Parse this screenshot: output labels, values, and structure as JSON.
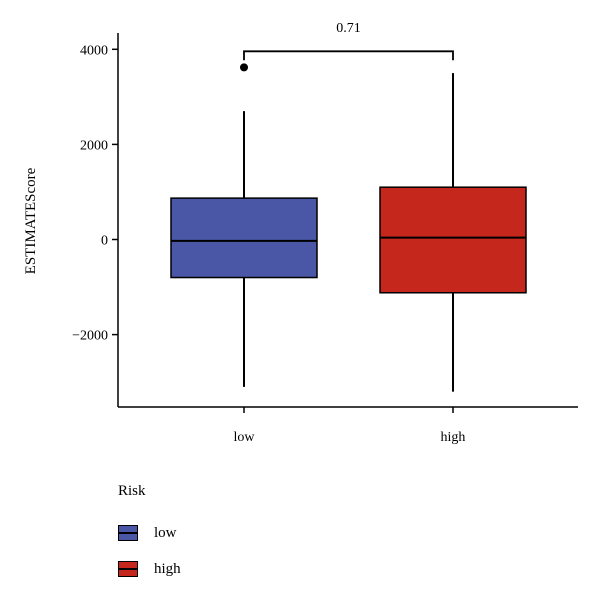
{
  "chart_data": {
    "type": "boxplot",
    "title": "",
    "xlabel": "",
    "ylabel": "ESTIMATEScore",
    "ylim": [
      -3550,
      4400
    ],
    "yticks": [
      4000,
      2000,
      0,
      -2000
    ],
    "ytick_labels": [
      "4000",
      "2000",
      "0",
      "−2000"
    ],
    "categories": [
      "low",
      "high"
    ],
    "boxes": [
      {
        "category": "low",
        "min": -3100,
        "q1": -800,
        "median": -30,
        "q3": 870,
        "max": 2700,
        "outliers": [
          3620
        ],
        "color": "#4a56a6"
      },
      {
        "category": "high",
        "min": -3200,
        "q1": -1120,
        "median": 40,
        "q3": 1100,
        "max": 3500,
        "outliers": [],
        "color": "#c6271c"
      }
    ],
    "comparison": {
      "from": "low",
      "to": "high",
      "label": "0.71",
      "y": 4000
    },
    "grid": false,
    "legend": {
      "title": "Risk",
      "position": "bottom-left",
      "items": [
        {
          "label": "low",
          "color": "#4a56a6"
        },
        {
          "label": "high",
          "color": "#c6271c"
        }
      ]
    }
  }
}
